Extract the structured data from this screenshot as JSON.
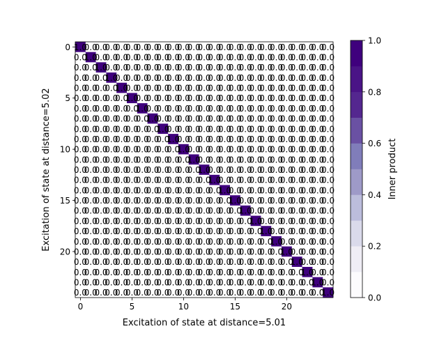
{
  "chart_data": {
    "type": "heatmap",
    "title": "",
    "xlabel": "Excitation of state at distance=5.01",
    "ylabel": "Excitation of state at distance=5.02",
    "rows": 25,
    "cols": 25,
    "x_ticks": [
      0,
      5,
      10,
      15,
      20
    ],
    "y_ticks": [
      0,
      5,
      10,
      15,
      20
    ],
    "diagonal_value": 1.0,
    "off_diagonal_value": 0.0,
    "cell_label_format": "0.0",
    "description_of_values": "Identity matrix: value 1.0 on the diagonal (row i, col i), 0.0 elsewhere",
    "colorbar": {
      "label": "Inner product",
      "range": [
        0.0,
        1.0
      ],
      "ticks": [
        "0.0",
        "0.2",
        "0.4",
        "0.6",
        "0.8",
        "1.0"
      ],
      "levels": 10,
      "colors": [
        "#fcfbfd",
        "#efedf5",
        "#dadaeb",
        "#bcbddc",
        "#9e9ac8",
        "#807dba",
        "#6a51a3",
        "#54278f",
        "#4a1486",
        "#3f007d"
      ]
    },
    "off_diagonal_color": "#ffffff",
    "diagonal_color": "#3f007d"
  }
}
